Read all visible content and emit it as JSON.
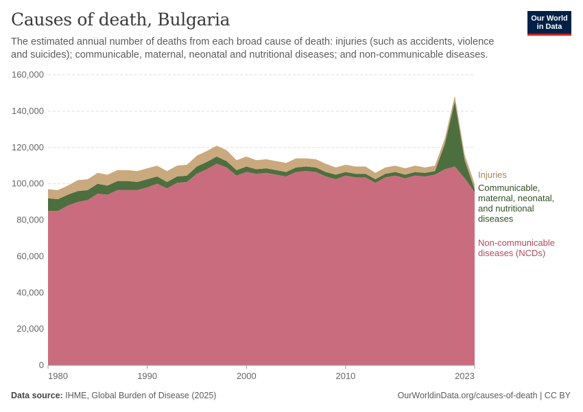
{
  "header": {
    "title": "Causes of death, Bulgaria",
    "subtitle": "The estimated annual number of deaths from each broad cause of death: injuries (such as accidents, violence and suicides); communicable, maternal, neonatal and nutritional diseases; and non-communicable diseases."
  },
  "logo": {
    "line1": "Our World",
    "line2": "in Data"
  },
  "footer": {
    "source_label": "Data source:",
    "source_text": "IHME, Global Burden of Disease (2025)",
    "url": "OurWorldinData.org/causes-of-death | CC BY"
  },
  "colors": {
    "ncd": "#c96d7e",
    "communicable": "#4d6f3f",
    "injuries": "#caa97e",
    "ncd_label": "#b4475b",
    "communicable_label": "#2d4f21",
    "injuries_label": "#a8844e",
    "grid": "#dddddd",
    "axis": "#666666"
  },
  "chart_data": {
    "type": "area",
    "stacked": true,
    "title": "Causes of death, Bulgaria",
    "ylim": [
      0,
      160000
    ],
    "xlim": [
      1980,
      2023
    ],
    "yticks": [
      0,
      20000,
      40000,
      60000,
      80000,
      100000,
      120000,
      140000,
      160000
    ],
    "ytick_labels": [
      "0",
      "20,000",
      "40,000",
      "60,000",
      "80,000",
      "100,000",
      "120,000",
      "140,000",
      "160,000"
    ],
    "xticks": [
      1980,
      1990,
      2000,
      2010,
      2023
    ],
    "xtick_labels": [
      "1980",
      "1990",
      "2000",
      "2010",
      "2023"
    ],
    "x": [
      1980,
      1981,
      1982,
      1983,
      1984,
      1985,
      1986,
      1987,
      1988,
      1989,
      1990,
      1991,
      1992,
      1993,
      1994,
      1995,
      1996,
      1997,
      1998,
      1999,
      2000,
      2001,
      2002,
      2003,
      2004,
      2005,
      2006,
      2007,
      2008,
      2009,
      2010,
      2011,
      2012,
      2013,
      2014,
      2015,
      2016,
      2017,
      2018,
      2019,
      2020,
      2021,
      2022,
      2023
    ],
    "series": [
      {
        "name": "Non-communicable diseases (NCDs)",
        "legend_label": [
          "Non-communicable",
          "diseases (NCDs)"
        ],
        "color_key": "ncd",
        "values": [
          85000,
          85000,
          88000,
          90000,
          91000,
          94500,
          94000,
          96500,
          96500,
          96500,
          98000,
          100000,
          97500,
          100500,
          101000,
          105500,
          108000,
          111000,
          109000,
          104500,
          106500,
          105500,
          106000,
          105000,
          104000,
          106500,
          107000,
          106500,
          104000,
          102500,
          104500,
          103500,
          103500,
          100500,
          103500,
          104500,
          103000,
          104500,
          104000,
          105000,
          108000,
          109500,
          103000,
          95500
        ]
      },
      {
        "name": "Communicable, maternal, neonatal, and nutritional diseases",
        "legend_label": [
          "Communicable,",
          "maternal, neonatal,",
          "and nutritional",
          "diseases"
        ],
        "color_key": "communicable",
        "values": [
          7000,
          6500,
          6000,
          6000,
          5500,
          5500,
          5000,
          5000,
          5000,
          4500,
          4500,
          4000,
          3500,
          3500,
          3500,
          4000,
          4000,
          4000,
          3500,
          3000,
          3000,
          2500,
          2500,
          2500,
          2500,
          2500,
          2500,
          2500,
          2500,
          2500,
          2000,
          2000,
          2000,
          2000,
          2000,
          2000,
          2000,
          2000,
          2000,
          2000,
          14000,
          36000,
          10000,
          1500
        ]
      },
      {
        "name": "Injuries",
        "legend_label": [
          "Injuries"
        ],
        "color_key": "injuries",
        "values": [
          5000,
          5000,
          5000,
          6000,
          6000,
          6000,
          6000,
          6000,
          6000,
          6000,
          6000,
          6000,
          6000,
          6000,
          6000,
          6000,
          6000,
          6000,
          6000,
          5500,
          5500,
          5000,
          5000,
          5000,
          5000,
          5000,
          4500,
          4500,
          4500,
          4000,
          4000,
          4000,
          4000,
          3500,
          3500,
          3500,
          3500,
          3500,
          3000,
          3000,
          3000,
          3000,
          3000,
          3000
        ]
      }
    ]
  }
}
